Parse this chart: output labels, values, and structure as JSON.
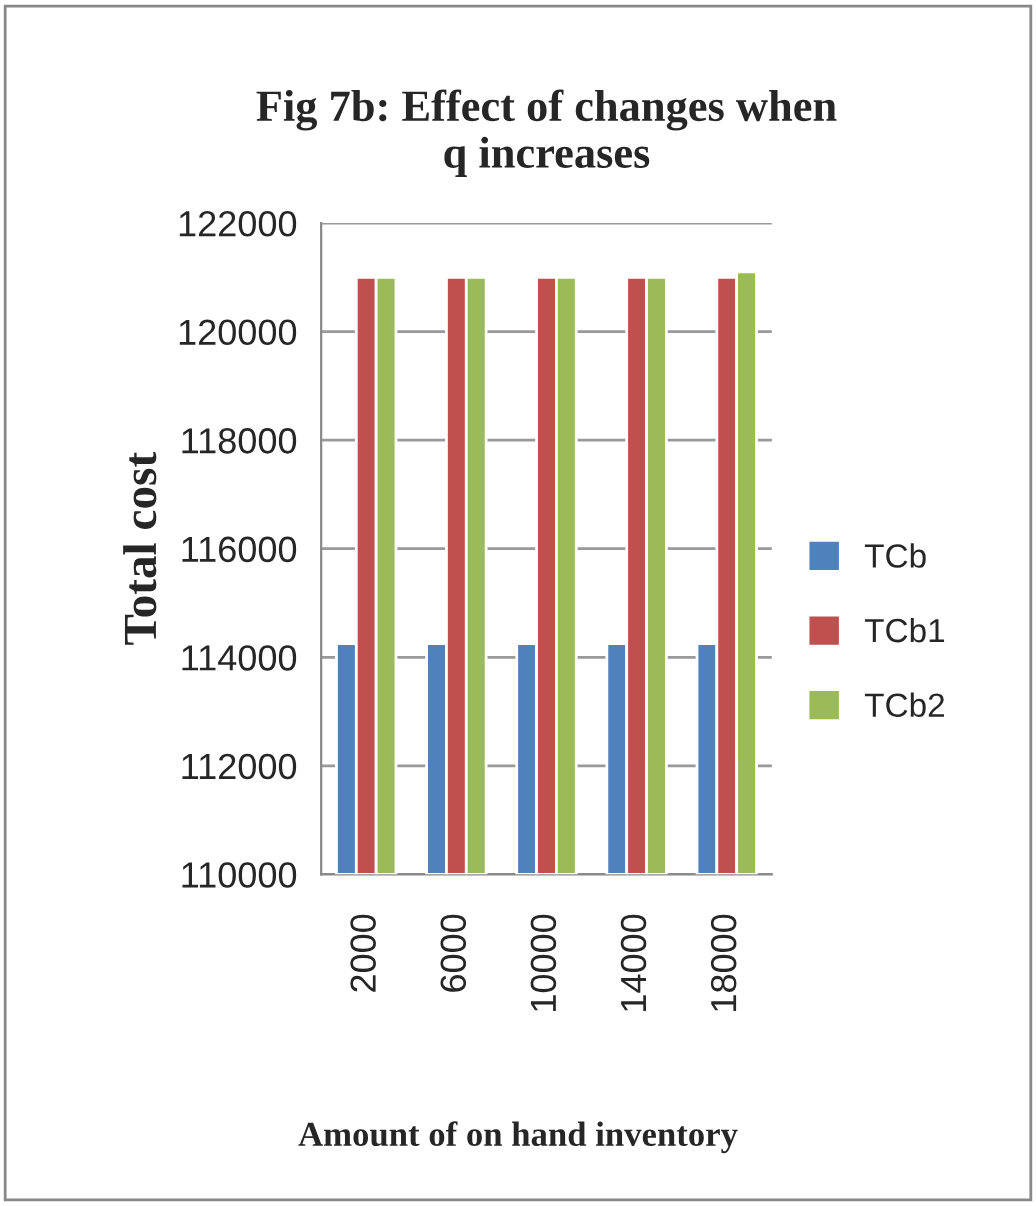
{
  "chart_data": {
    "type": "bar",
    "title": "Fig 7b: Effect of changes when\nq increases",
    "xlabel": "Amount of on hand inventory",
    "ylabel": "Total cost",
    "categories": [
      "2000",
      "6000",
      "10000",
      "14000",
      "18000"
    ],
    "series": [
      {
        "name": "TCb",
        "color": "#4f81bd",
        "values": [
          114250,
          114250,
          114250,
          114250,
          114250
        ]
      },
      {
        "name": "TCb1",
        "color": "#c0504d",
        "values": [
          121000,
          121000,
          121000,
          121000,
          121000
        ]
      },
      {
        "name": "TCb2",
        "color": "#9bbb59",
        "values": [
          121000,
          121000,
          121000,
          121000,
          121100
        ]
      }
    ],
    "ylim": [
      110000,
      122000
    ],
    "yticks": [
      110000,
      112000,
      114000,
      116000,
      118000,
      120000,
      122000
    ],
    "grid": "y",
    "legend": "right"
  }
}
